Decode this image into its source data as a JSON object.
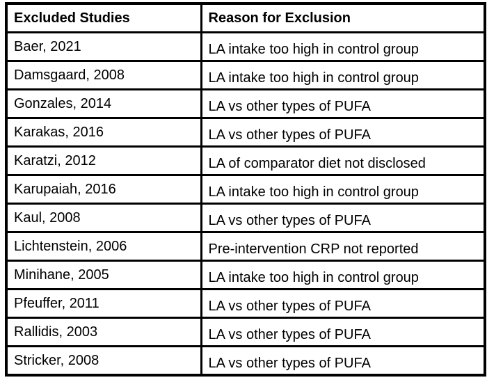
{
  "colors": {
    "border": "#000000",
    "text": "#000000",
    "background": "#ffffff"
  },
  "table": {
    "headers": [
      "Excluded Studies",
      "Reason for Exclusion"
    ],
    "rows": [
      {
        "study": "Baer, 2021",
        "reason": "LA intake too high in control group"
      },
      {
        "study": "Damsgaard, 2008",
        "reason": "LA intake too high in control group"
      },
      {
        "study": "Gonzales, 2014",
        "reason": "LA vs other types of PUFA"
      },
      {
        "study": "Karakas, 2016",
        "reason": "LA vs other types of PUFA"
      },
      {
        "study": "Karatzi, 2012",
        "reason": "LA of comparator diet not disclosed"
      },
      {
        "study": "Karupaiah, 2016",
        "reason": "LA intake too high in control group"
      },
      {
        "study": "Kaul, 2008",
        "reason": "LA vs other types of PUFA"
      },
      {
        "study": "Lichtenstein, 2006",
        "reason": "Pre-intervention CRP not reported"
      },
      {
        "study": "Minihane, 2005",
        "reason": "LA intake too high in control group"
      },
      {
        "study": "Pfeuffer, 2011",
        "reason": "LA vs other types of PUFA"
      },
      {
        "study": "Rallidis, 2003",
        "reason": "LA vs other types of PUFA"
      },
      {
        "study": "Stricker, 2008",
        "reason": "LA vs other types of PUFA"
      }
    ]
  }
}
